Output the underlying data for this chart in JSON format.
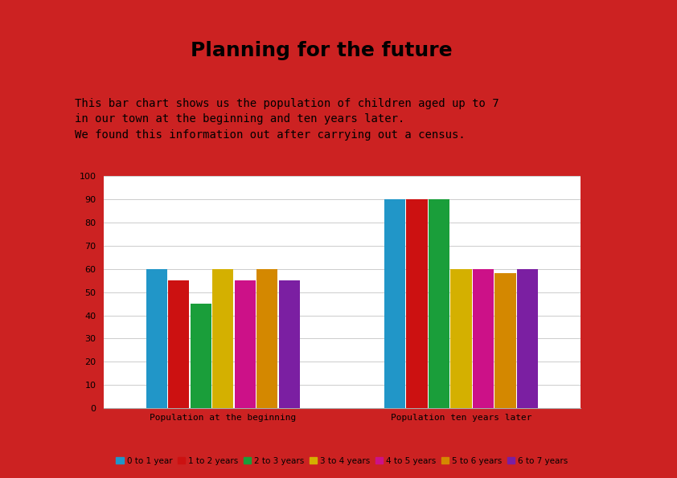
{
  "title": "Planning for the future",
  "subtitle_lines": [
    "This bar chart shows us the population of children aged up to 7",
    "in our town at the beginning and ten years later.",
    "We found this information out after carrying out a census."
  ],
  "groups": [
    "Population at the beginning",
    "Population ten years later"
  ],
  "categories": [
    "0 to 1 year",
    "1 to 2 years",
    "2 to 3 years",
    "3 to 4 years",
    "4 to 5 years",
    "5 to 6 years",
    "6 to 7 years"
  ],
  "colors": [
    "#2196c8",
    "#cc1111",
    "#1a9e3a",
    "#d4b000",
    "#cc1188",
    "#d48800",
    "#7b1fa2"
  ],
  "data": {
    "Population at the beginning": [
      60,
      55,
      45,
      60,
      55,
      60,
      55
    ],
    "Population ten years later": [
      90,
      90,
      90,
      60,
      60,
      58,
      60
    ]
  },
  "ylim": [
    0,
    100
  ],
  "yticks": [
    0,
    10,
    20,
    30,
    40,
    50,
    60,
    70,
    80,
    90,
    100
  ],
  "background_color": "#ffffff",
  "border_color": "#cc2222",
  "title_fontsize": 18,
  "subtitle_fontsize": 10,
  "axis_label_fontsize": 8,
  "legend_fontsize": 7.5,
  "tick_fontsize": 8
}
